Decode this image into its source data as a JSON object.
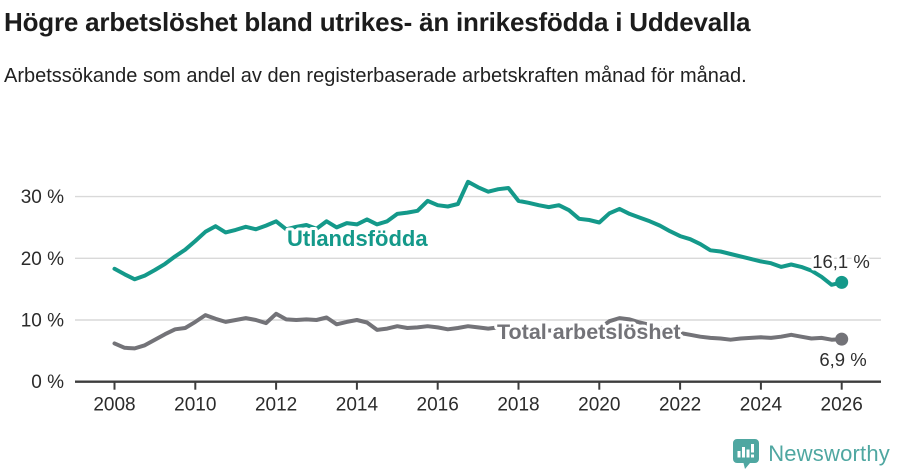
{
  "header": {
    "title": "Högre arbetslöshet bland utrikes- än inrikesfödda i Uddevalla",
    "subtitle": "Arbetssökande som andel av den registerbaserade arbetskraften månad för månad."
  },
  "chart_data": {
    "type": "line",
    "title": "Högre arbetslöshet bland utrikes- än inrikesfödda i Uddevalla",
    "subtitle": "Arbetssökande som andel av den registerbaserade arbetskraften månad för månad.",
    "unit": "%",
    "grid": "horizontal",
    "legend_position": "inline-labels",
    "xlim": [
      2007.05,
      2027.0
    ],
    "ylim": [
      0,
      34
    ],
    "x_ticks": [
      2008,
      2010,
      2012,
      2014,
      2016,
      2018,
      2020,
      2022,
      2024,
      2026
    ],
    "x_tick_labels": [
      "2008",
      "2010",
      "2012",
      "2014",
      "2016",
      "2018",
      "2020",
      "2022",
      "2024",
      "2026"
    ],
    "y_ticks": [
      {
        "value": 0,
        "label": "0 %"
      },
      {
        "value": 10,
        "label": "10 %"
      },
      {
        "value": 20,
        "label": "20 %"
      },
      {
        "value": 30,
        "label": "30 %"
      }
    ],
    "x": [
      2008.0,
      2008.25,
      2008.5,
      2008.75,
      2009.0,
      2009.25,
      2009.5,
      2009.75,
      2010.0,
      2010.25,
      2010.5,
      2010.75,
      2011.0,
      2011.25,
      2011.5,
      2011.75,
      2012.0,
      2012.25,
      2012.5,
      2012.75,
      2013.0,
      2013.25,
      2013.5,
      2013.75,
      2014.0,
      2014.25,
      2014.5,
      2014.75,
      2015.0,
      2015.25,
      2015.5,
      2015.75,
      2016.0,
      2016.25,
      2016.5,
      2016.75,
      2017.0,
      2017.25,
      2017.5,
      2017.75,
      2018.0,
      2018.25,
      2018.5,
      2018.75,
      2019.0,
      2019.25,
      2019.5,
      2019.75,
      2020.0,
      2020.25,
      2020.5,
      2020.75,
      2021.0,
      2021.25,
      2021.5,
      2021.75,
      2022.0,
      2022.25,
      2022.5,
      2022.75,
      2023.0,
      2023.25,
      2023.5,
      2023.75,
      2024.0,
      2024.25,
      2024.5,
      2024.75,
      2025.0,
      2025.25,
      2025.5,
      2025.75,
      2026.0
    ],
    "series": [
      {
        "name": "Utlandsfödda",
        "color": "#14998a",
        "end_label": "16,1 %",
        "end_value": 16.1,
        "values": [
          18.3,
          17.4,
          16.6,
          17.2,
          18.1,
          19.1,
          20.3,
          21.4,
          22.8,
          24.3,
          25.2,
          24.2,
          24.6,
          25.1,
          24.7,
          25.3,
          26.0,
          24.7,
          25.1,
          25.4,
          24.8,
          26.0,
          25.0,
          25.7,
          25.5,
          26.3,
          25.5,
          26.0,
          27.2,
          27.4,
          27.7,
          29.3,
          28.6,
          28.4,
          28.8,
          32.4,
          31.5,
          30.8,
          31.2,
          31.4,
          29.3,
          29.0,
          28.6,
          28.3,
          28.6,
          27.8,
          26.4,
          26.2,
          25.8,
          27.3,
          28.0,
          27.2,
          26.6,
          26.0,
          25.3,
          24.4,
          23.6,
          23.1,
          22.3,
          21.3,
          21.1,
          20.7,
          20.3,
          19.9,
          19.5,
          19.2,
          18.6,
          19.0,
          18.6,
          18.0,
          17.0,
          15.7,
          16.1
        ]
      },
      {
        "name": "Total arbetslöshet",
        "color": "#737378",
        "end_label": "6,9 %",
        "end_value": 6.9,
        "values": [
          6.2,
          5.5,
          5.4,
          5.9,
          6.8,
          7.7,
          8.5,
          8.7,
          9.7,
          10.8,
          10.2,
          9.7,
          10.0,
          10.3,
          10.0,
          9.5,
          11.0,
          10.1,
          10.0,
          10.1,
          10.0,
          10.4,
          9.3,
          9.7,
          10.0,
          9.6,
          8.4,
          8.6,
          9.0,
          8.7,
          8.8,
          9.0,
          8.8,
          8.5,
          8.7,
          9.0,
          8.8,
          8.6,
          8.8,
          8.7,
          8.6,
          8.5,
          8.4,
          8.3,
          8.3,
          8.2,
          8.2,
          8.3,
          8.6,
          9.8,
          10.3,
          10.1,
          9.6,
          9.2,
          8.7,
          8.2,
          7.9,
          7.6,
          7.3,
          7.1,
          7.0,
          6.8,
          7.0,
          7.1,
          7.2,
          7.1,
          7.3,
          7.6,
          7.3,
          7.0,
          7.1,
          6.8,
          6.9
        ]
      }
    ]
  },
  "colors": {
    "accent_teal": "#14998a",
    "line_gray": "#737378",
    "grid": "#d9d9d9",
    "axis": "#3d3d3d",
    "brand_teal": "#4fa7a1",
    "title_text": "#1c1c1c"
  },
  "footer": {
    "brand": "Newsworthy",
    "logo_icon": "bar-chart-speech-bubble-icon"
  }
}
